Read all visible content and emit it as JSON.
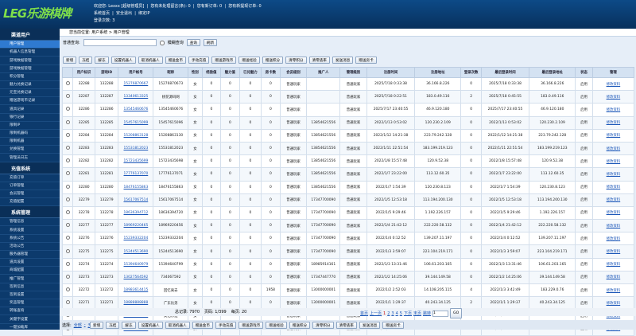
{
  "header": {
    "logo": "LEG乐游棋牌",
    "lines": [
      "欢迎您: Lexxx [超级管理员]  |  您有未处理留言(条): 0  |  您有新订单: 0  |  您有新提现订单: 0",
      "系统首页  |  安全退出  |  绑定IP",
      "登录次数: 3"
    ]
  },
  "sidebar": {
    "sections": [
      {
        "title": "渠道用户",
        "items": [
          "用户管理",
          "机器人信息管理",
          "游戏数据管理",
          "游戏数据管理",
          "积分管理",
          "魅力兑换记录",
          "元宝兑换记录",
          "赠送游戏币记录",
          "道具记录",
          "银行记录",
          "限制IP",
          "限制机器码",
          "限制机器",
          "兑换管理",
          "管理员日志"
        ]
      },
      {
        "title": "充值系统",
        "items": [
          "充值订单",
          "订单管理",
          "会员管理",
          "充值配置"
        ]
      },
      {
        "title": "系统管理",
        "items": [
          "管理信息",
          "系统设置",
          "系统公告",
          "活动公告",
          "服务器管理",
          "道具设置",
          "商城配置",
          "推广管理",
          "签到信息",
          "签到设置",
          "奖品管理",
          "转账查询",
          "关键字设置",
          "一键加载库"
        ]
      },
      {
        "title": "系统后台",
        "items": []
      }
    ]
  },
  "breadcrumb": "您当前位置: 用户系统 > 用户管理",
  "search": {
    "label": "普通查询:",
    "fuzzy": "模糊查询",
    "buttons": [
      "查询",
      "刷新"
    ]
  },
  "toolbar": [
    "新增",
    "冻结",
    "解冻",
    "设置机器人",
    "取消机器人",
    "赠送金币",
    "手动充值",
    "赠送游戏币",
    "赠送经验",
    "赠送积分",
    "清零积分",
    "清零逃率",
    "发送消息",
    "赠送房卡"
  ],
  "table": {
    "columns": [
      "用户标识",
      "游戏ID",
      "用户帐号",
      "昵称",
      "性别",
      "经验值",
      "魅力值",
      "已兑魅力",
      "房卡数",
      "会员级别",
      "推广人",
      "管理级别",
      "注册时间",
      "注册地址",
      "登录次数",
      "最后登录时间",
      "最后登录地址",
      "状态",
      "管理"
    ],
    "rows": [
      [
        "32288",
        "132288",
        "15276870667",
        "15276870673",
        "女",
        "0",
        "0",
        "0",
        "0",
        "普通玩家",
        "",
        "普通玩家",
        "2025/7/18 0:33:38",
        "36.166.8.226",
        "0",
        "2025/7/18 0:33:38",
        "36.166.8.226",
        "启用",
        "修改资料"
      ],
      [
        "32287",
        "132287",
        "13340613325",
        "桃花源码网",
        "女",
        "0",
        "0",
        "0",
        "0",
        "普通玩家",
        "",
        "普通玩家",
        "2025/7/18 0:22:51",
        "183.0.49.116",
        "2",
        "2025/7/18 0:45:55",
        "183.0.49.116",
        "启用",
        "修改资料"
      ],
      [
        "32286",
        "132286",
        "13545460676",
        "13545460676",
        "女",
        "0",
        "0",
        "0",
        "0",
        "普通玩家",
        "",
        "普通玩家",
        "2025/7/17 23:40:55",
        "46.9.120.180",
        "0",
        "2025/7/17 23:40:55",
        "46.9.120.180",
        "启用",
        "修改资料"
      ],
      [
        "32285",
        "132285",
        "15457615099",
        "15457615096",
        "女",
        "0",
        "0",
        "0",
        "0",
        "普通玩家",
        "13854621556",
        "普通玩家",
        "2022/1/13 0:53:02",
        "120.230.2.109",
        "0",
        "2022/1/13 0:53:02",
        "120.230.2.109",
        "启用",
        "修改资料"
      ],
      [
        "32284",
        "132284",
        "15208863128",
        "15208863130",
        "女",
        "0",
        "0",
        "0",
        "0",
        "普通玩家",
        "13854621556",
        "普通玩家",
        "2022/1/12 14:21:38",
        "223.79.242.128",
        "0",
        "2022/1/12 14:21:38",
        "223.79.242.128",
        "启用",
        "修改资料"
      ],
      [
        "32283",
        "132283",
        "15531812023",
        "15531812023",
        "女",
        "0",
        "0",
        "0",
        "0",
        "普通玩家",
        "13854621556",
        "普通玩家",
        "2022/1/11 22:51:54",
        "183.199.219.123",
        "0",
        "2022/1/11 22:51:54",
        "183.199.219.123",
        "启用",
        "修改资料"
      ],
      [
        "32282",
        "132282",
        "15723435699",
        "15723435698",
        "女",
        "0",
        "0",
        "0",
        "0",
        "普通玩家",
        "13854621556",
        "普通玩家",
        "2022/1/8 15:57:48",
        "120.9.52.38",
        "0",
        "2022/1/8 15:57:48",
        "120.9.52.38",
        "启用",
        "修改资料"
      ],
      [
        "32281",
        "132281",
        "17776137070",
        "17776137071",
        "女",
        "0",
        "0",
        "0",
        "0",
        "普通玩家",
        "13854621556",
        "普通玩家",
        "2022/1/7 23:22:00",
        "113.12.60.35",
        "0",
        "2022/1/7 23:22:00",
        "113.12.60.35",
        "启用",
        "修改资料"
      ],
      [
        "32280",
        "132280",
        "18476155863",
        "18476155863",
        "女",
        "0",
        "0",
        "0",
        "0",
        "普通玩家",
        "13854621556",
        "普通玩家",
        "2022/1/7 1:54:39",
        "120.230.8.123",
        "0",
        "2022/1/7 1:54:39",
        "120.230.8.123",
        "启用",
        "修改资料"
      ],
      [
        "32279",
        "132279",
        "15617067514",
        "15617067514",
        "女",
        "0",
        "0",
        "0",
        "0",
        "普通玩家",
        "17347700090",
        "普通玩家",
        "2022/1/5 12:53:18",
        "113.194.200.130",
        "0",
        "2022/1/5 12:53:18",
        "113.194.200.130",
        "启用",
        "修改资料"
      ],
      [
        "32278",
        "132278",
        "18636394712",
        "18636394720",
        "女",
        "0",
        "0",
        "0",
        "0",
        "普通玩家",
        "17347700090",
        "普通玩家",
        "2022/1/5 9:29:46",
        "1.192.226.157",
        "0",
        "2022/1/5 9:29:46",
        "1.192.226.157",
        "启用",
        "修改资料"
      ],
      [
        "32277",
        "132277",
        "18969220465",
        "18969220456",
        "女",
        "0",
        "0",
        "0",
        "0",
        "普通玩家",
        "17347700090",
        "普通玩家",
        "2022/1/4 21:42:12",
        "222.220.58.132",
        "0",
        "2022/1/4 21:42:12",
        "222.220.58.132",
        "启用",
        "修改资料"
      ],
      [
        "32276",
        "132276",
        "15239332204",
        "15239332204",
        "女",
        "0",
        "0",
        "0",
        "0",
        "普通玩家",
        "17347700090",
        "普通玩家",
        "2022/1/4 0:12:52",
        "139.207.11.197",
        "0",
        "2022/1/4 0:12:52",
        "139.207.11.197",
        "启用",
        "修改资料"
      ],
      [
        "32275",
        "132275",
        "15244513690",
        "15244513690",
        "女",
        "0",
        "0",
        "0",
        "0",
        "普通玩家",
        "17347700090",
        "普通玩家",
        "2022/1/3 3:59:07",
        "223.104.219.171",
        "0",
        "2022/1/3 3:59:07",
        "223.104.219.171",
        "启用",
        "修改资料"
      ],
      [
        "32274",
        "132274",
        "15394640979",
        "15394640799",
        "女",
        "0",
        "0",
        "0",
        "0",
        "普通玩家",
        "18985914161",
        "普通玩家",
        "2022/1/3 13:31:46",
        "106.61.203.165",
        "0",
        "2022/1/3 13:31:46",
        "106.61.203.165",
        "启用",
        "修改资料"
      ],
      [
        "32273",
        "132273",
        "13027564592",
        "734067592",
        "女",
        "0",
        "0",
        "0",
        "0",
        "普通玩家",
        "17347447770",
        "普通玩家",
        "2022/1/2 14:25:06",
        "39.144.149.58",
        "0",
        "2022/1/2 14:25:06",
        "39.144.149.58",
        "启用",
        "修改资料"
      ],
      [
        "32272",
        "132272",
        "18983614415",
        "回忆离去",
        "女",
        "0",
        "0",
        "0",
        "1958",
        "普通玩家",
        "13000000001",
        "普通玩家",
        "2022/1/2 2:52:03",
        "14.108.205.115",
        "4",
        "2022/1/3 3:42:49",
        "183.229.0.76",
        "启用",
        "修改资料"
      ],
      [
        "32271",
        "132271",
        "18888888888",
        "广东比弟",
        "女",
        "0",
        "0",
        "0",
        "0",
        "普通玩家",
        "13000000001",
        "普通玩家",
        "2022/1/1 1:29:37",
        "40.243.34.125",
        "2",
        "2022/1/1 1:29:37",
        "40.243.34.125",
        "启用",
        "修改资料"
      ],
      [
        "32270",
        "132270",
        "15115282670",
        "莫泊东边",
        "女",
        "0",
        "0",
        "0",
        "0",
        "普通玩家",
        "17726601496",
        "普通玩家",
        "2021/12/31 22:38:34",
        "119.85.28.188",
        "1",
        "2021/12/31 22:42:59",
        "336.84.136.76",
        "启用",
        "修改资料"
      ],
      [
        "32269",
        "132269",
        "13448366830",
        "13448366836",
        "女",
        "0",
        "0",
        "0",
        "0",
        "普通玩家",
        "13459800330",
        "普通玩家",
        "2021/12/31 12:22:44",
        "36.251.161.18",
        "0",
        "2021/12/31 12:22:44",
        "36.251.161.18",
        "启用",
        "修改资料"
      ]
    ]
  },
  "pager": {
    "summary": [
      "总记录: 7970",
      "页码: 1/399",
      "每页: 20"
    ],
    "links": [
      "首页",
      "上一页"
    ],
    "pages": [
      "1",
      "2",
      "3",
      "4",
      "5"
    ],
    "links2": [
      "下页",
      "末页",
      "跳转"
    ],
    "input": "1",
    "go": "GO"
  },
  "footer": {
    "select": [
      "选择:",
      "全部",
      "-",
      "无"
    ]
  }
}
